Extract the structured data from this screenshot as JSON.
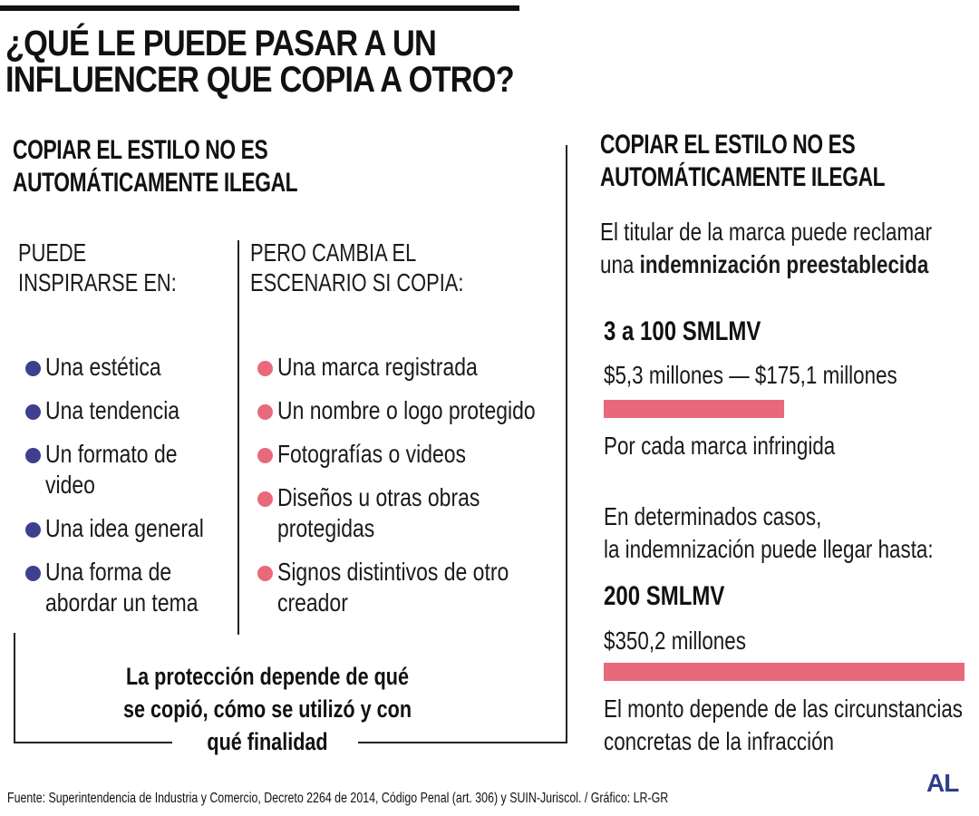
{
  "title_lines": [
    "¿QUÉ LE PUEDE PASAR A UN",
    "INFLUENCER QUE COPIA A OTRO?"
  ],
  "left": {
    "heading_lines": [
      "COPIAR EL ESTILO NO ES",
      "AUTOMÁTICAMENTE ILEGAL"
    ],
    "col1": {
      "heading_lines": [
        "PUEDE",
        "INSPIRARSE EN:"
      ],
      "items": [
        [
          "Una estética"
        ],
        [
          "Una tendencia"
        ],
        [
          "Un formato de",
          "video"
        ],
        [
          "Una idea general"
        ],
        [
          "Una forma de",
          "abordar un tema"
        ]
      ]
    },
    "col2": {
      "heading_lines": [
        "PERO CAMBIA EL",
        "ESCENARIO SI COPIA:"
      ],
      "items": [
        [
          "Una marca registrada"
        ],
        [
          "Un nombre o logo protegido"
        ],
        [
          "Fotografías o videos"
        ],
        [
          "Diseños u otras obras",
          "protegidas"
        ],
        [
          "Signos distintivos de otro",
          "creador"
        ]
      ]
    },
    "summary_lines": [
      "La protección depende de qué",
      "se copió, cómo se utilizó y con",
      "qué finalidad"
    ]
  },
  "right": {
    "heading_lines": [
      "COPIAR EL ESTILO NO ES",
      "AUTOMÁTICAMENTE ILEGAL"
    ],
    "intro_line1": "El titular de la marca puede reclamar",
    "intro_line2_prefix": "una ",
    "intro_line2_bold": "indemnización preestablecida",
    "tier1": {
      "smlmv": "3 a 100 SMLMV",
      "amount": "$5,3 millones — $175,1 millones",
      "max_millions": 175.1,
      "note": "Por cada marca infringida"
    },
    "middle_lines": [
      "En determinados casos,",
      "la indemnización puede llegar hasta:"
    ],
    "tier2": {
      "smlmv": "200 SMLMV",
      "amount": "$350,2 millones",
      "max_millions": 350.2
    },
    "footer_lines": [
      "El monto depende de las circunstancias",
      "concretas de la infracción"
    ],
    "bar_color": "#e8697a"
  },
  "colors": {
    "blue_dot": "#3f3f8f",
    "pink_dot": "#e8697a",
    "logo": "#2b3f8a"
  },
  "source": "Fuente: Superintendencia de Industria y Comercio, Decreto 2264 de 2014, Código Penal (art. 306) y SUIN-Juriscol. / Gráfico: LR-GR",
  "logo_text": "AL"
}
